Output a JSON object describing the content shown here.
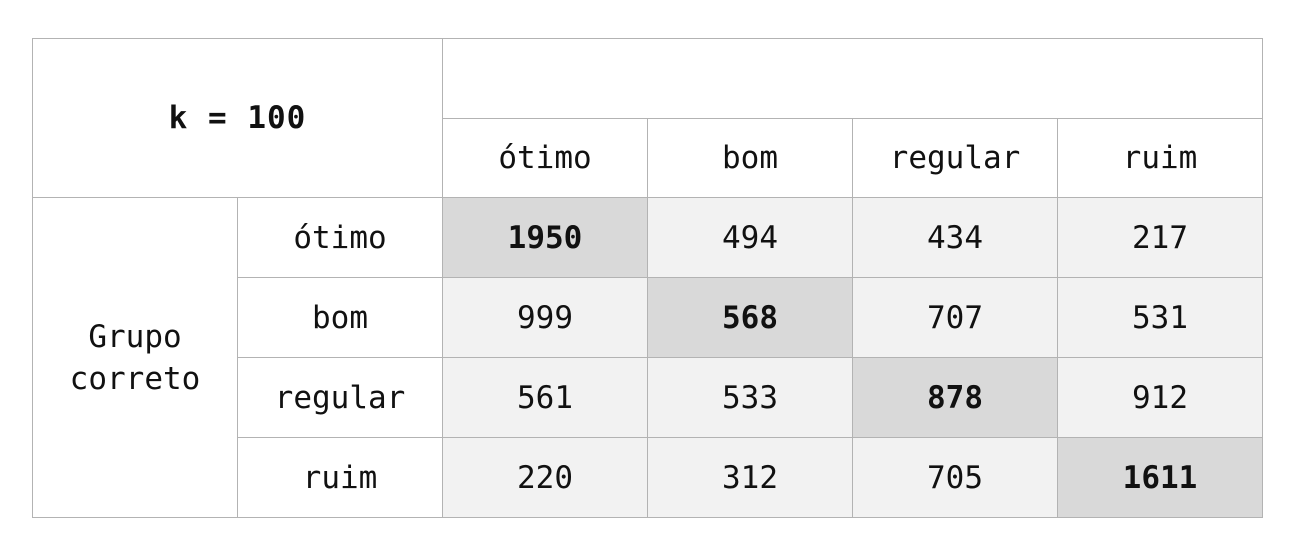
{
  "corner_label": "k = 100",
  "predicted_group_title": "",
  "row_group_label": "Grupo correto",
  "classes": [
    "ótimo",
    "bom",
    "regular",
    "ruim"
  ],
  "matrix": [
    [
      1950,
      494,
      434,
      217
    ],
    [
      999,
      568,
      707,
      531
    ],
    [
      561,
      533,
      878,
      912
    ],
    [
      220,
      312,
      705,
      1611
    ]
  ],
  "colors": {
    "cell_background": "#f2f2f2",
    "diagonal_background": "#d9d9d9",
    "border": "#b3b3b3"
  }
}
